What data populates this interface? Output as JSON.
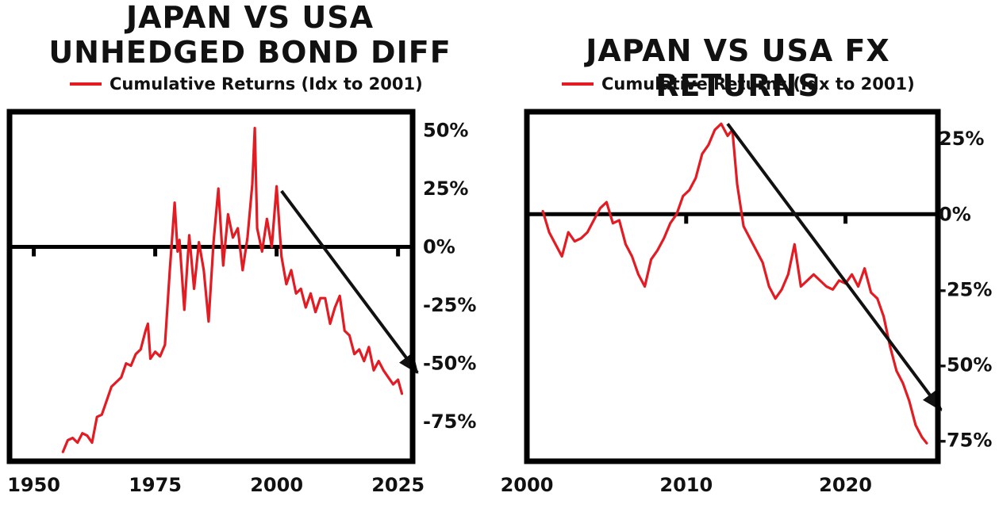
{
  "colors": {
    "series": "#e31b23",
    "frame": "#000000",
    "arrow": "#111111"
  },
  "chart_data": [
    {
      "type": "line",
      "title": "JAPAN VS USA\nUNHEDGED BOND DIFF",
      "title_lines": [
        "JAPAN VS USA",
        "UNHEDGED BOND DIFF"
      ],
      "legend": {
        "label": "Cumulative Returns (Idx to 2001)",
        "placement": "top"
      },
      "series": [
        {
          "name": "Cumulative Returns (Idx to 2001)",
          "color": "#e31b23",
          "x": [
            1956,
            1957,
            1958,
            1959,
            1960,
            1961,
            1962,
            1963,
            1964,
            1965,
            1966,
            1967,
            1968,
            1969,
            1970,
            1971,
            1972,
            1973,
            1973.5,
            1974,
            1975,
            1976,
            1977,
            1978,
            1979,
            1979.6,
            1980,
            1981,
            1982,
            1983,
            1984,
            1985,
            1986,
            1987,
            1988,
            1989,
            1990,
            1991,
            1992,
            1993,
            1994,
            1995,
            1995.5,
            1996,
            1997,
            1998,
            1999,
            2000,
            2001,
            2002,
            2003,
            2004,
            2005,
            2006,
            2007,
            2008,
            2009,
            2010,
            2011,
            2012,
            2013,
            2014,
            2015,
            2016,
            2017,
            2018,
            2019,
            2020,
            2021,
            2022,
            2023,
            2024,
            2025,
            2025.8
          ],
          "y": [
            -88,
            -83,
            -82,
            -84,
            -80,
            -81,
            -84,
            -73,
            -72,
            -66,
            -60,
            -58,
            -56,
            -50,
            -51,
            -46,
            -44,
            -36,
            -33,
            -48,
            -45,
            -47,
            -42,
            -10,
            19,
            -2,
            3,
            -27,
            5,
            -18,
            2,
            -10,
            -32,
            2,
            25,
            -8,
            14,
            4,
            8,
            -10,
            4,
            27,
            51,
            8,
            -2,
            12,
            0,
            26,
            -4,
            -16,
            -10,
            -20,
            -18,
            -26,
            -20,
            -28,
            -22,
            -22,
            -33,
            -26,
            -21,
            -36,
            -38,
            -46,
            -44,
            -49,
            -43,
            -53,
            -49,
            -53,
            -56,
            -59,
            -57,
            -63
          ]
        }
      ],
      "xlabel": "",
      "ylabel": "",
      "xlim": [
        1945,
        2028
      ],
      "ylim": [
        -92,
        58
      ],
      "x_ticks": [
        1950,
        1975,
        2000,
        2025
      ],
      "x_tick_labels": [
        "1950",
        "1975",
        "2000",
        "2025"
      ],
      "y_ticks": [
        50,
        25,
        0,
        -25,
        -50,
        -75
      ],
      "y_tick_labels": [
        "50%",
        "25%",
        "0%",
        "-25%",
        "-50%",
        "-75%"
      ],
      "y_axis_side": "right",
      "zero_line": true,
      "grid": false,
      "annotations": [
        {
          "type": "arrow",
          "from": {
            "x": 2001,
            "y": 24
          },
          "to": {
            "x": 2029,
            "y": -54
          }
        }
      ]
    },
    {
      "type": "line",
      "title": "JAPAN VS USA FX RETURNS",
      "title_lines": [
        "JAPAN VS USA FX RETURNS"
      ],
      "legend": {
        "label": "Cumulative Returns (Idx to 2001)",
        "placement": "top"
      },
      "series": [
        {
          "name": "Cumulative Returns (Idx to 2001)",
          "color": "#e31b23",
          "x": [
            2001,
            2001.4,
            2001.8,
            2002.2,
            2002.6,
            2003,
            2003.4,
            2003.8,
            2004.2,
            2004.6,
            2005,
            2005.4,
            2005.8,
            2006.2,
            2006.6,
            2007,
            2007.4,
            2007.8,
            2008.2,
            2008.6,
            2009,
            2009.4,
            2009.8,
            2010.2,
            2010.6,
            2011,
            2011.4,
            2011.8,
            2012.2,
            2012.6,
            2012.9,
            2013.2,
            2013.6,
            2014,
            2014.4,
            2014.8,
            2015.2,
            2015.6,
            2016,
            2016.4,
            2016.8,
            2017.2,
            2017.6,
            2018,
            2018.4,
            2018.8,
            2019.2,
            2019.6,
            2020,
            2020.4,
            2020.8,
            2021.2,
            2021.6,
            2022,
            2022.4,
            2022.8,
            2023.2,
            2023.6,
            2024,
            2024.4,
            2024.8,
            2025.1
          ],
          "y": [
            1,
            -6,
            -10,
            -14,
            -6,
            -9,
            -8,
            -6,
            -2,
            2,
            4,
            -3,
            -2,
            -10,
            -14,
            -20,
            -24,
            -15,
            -12,
            -8,
            -3,
            0,
            6,
            8,
            12,
            20,
            23,
            28,
            30,
            26,
            28,
            10,
            -4,
            -8,
            -12,
            -16,
            -24,
            -28,
            -25,
            -20,
            -10,
            -24,
            -22,
            -20,
            -22,
            -24,
            -25,
            -22,
            -23,
            -20,
            -24,
            -18,
            -26,
            -28,
            -34,
            -44,
            -52,
            -56,
            -62,
            -70,
            -74,
            -76
          ]
        }
      ],
      "xlabel": "",
      "ylabel": "",
      "xlim": [
        2000,
        2025.8
      ],
      "ylim": [
        -82,
        34
      ],
      "x_ticks": [
        2000,
        2010,
        2020
      ],
      "x_tick_labels": [
        "2000",
        "2010",
        "2020"
      ],
      "y_ticks": [
        25,
        0,
        -25,
        -50,
        -75
      ],
      "y_tick_labels": [
        "25%",
        "0%",
        "-25%",
        "-50%",
        "-75%"
      ],
      "y_axis_side": "right",
      "zero_line": true,
      "grid": false,
      "annotations": [
        {
          "type": "arrow",
          "from": {
            "x": 2012.6,
            "y": 30
          },
          "to": {
            "x": 2026,
            "y": -65
          }
        }
      ]
    }
  ]
}
